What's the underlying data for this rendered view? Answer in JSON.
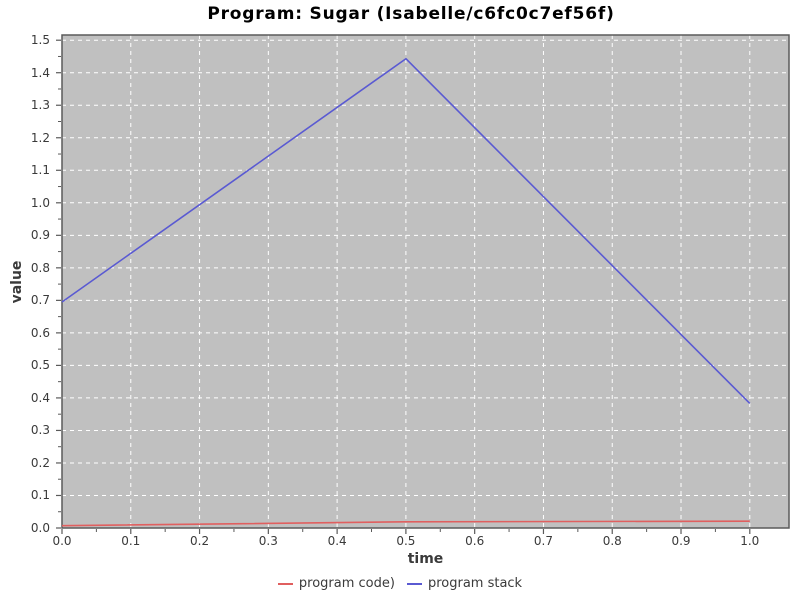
{
  "chart_data": {
    "type": "line",
    "title": "Program: Sugar (Isabelle/c6fc0c7ef56f)",
    "xlabel": "time",
    "ylabel": "value",
    "xlim": [
      0,
      1.057
    ],
    "ylim": [
      0,
      1.516
    ],
    "grid": true,
    "grid_style": "white dashed on gray background",
    "legend_position": "bottom-center",
    "x_ticks": [
      0.0,
      0.1,
      0.2,
      0.3,
      0.4,
      0.5,
      0.6,
      0.7,
      0.8,
      0.9,
      1.0
    ],
    "x_tick_labels": [
      "0.0",
      "0.1",
      "0.2",
      "0.3",
      "0.4",
      "0.5",
      "0.6",
      "0.7",
      "0.8",
      "0.9",
      "1.0"
    ],
    "y_ticks": [
      0.0,
      0.1,
      0.2,
      0.3,
      0.4,
      0.5,
      0.6,
      0.7,
      0.8,
      0.9,
      1.0,
      1.1,
      1.2,
      1.3,
      1.4,
      1.5
    ],
    "y_tick_labels": [
      "0.0",
      "0.1",
      "0.2",
      "0.3",
      "0.4",
      "0.5",
      "0.6",
      "0.7",
      "0.8",
      "0.9",
      "1.0",
      "1.1",
      "1.2",
      "1.3",
      "1.4",
      "1.5"
    ],
    "series": [
      {
        "name": "program code)",
        "color": "#e05f5f",
        "x": [
          0.0,
          0.5,
          1.0
        ],
        "y": [
          0.007,
          0.019,
          0.021
        ]
      },
      {
        "name": "program stack",
        "color": "#5a5ad2",
        "x": [
          0.0,
          0.5,
          1.0
        ],
        "y": [
          0.695,
          1.443,
          0.383
        ]
      }
    ],
    "colors": {
      "plot_background": "#c0c0c0",
      "grid": "#ffffff",
      "frame": "#5a5a5a",
      "tick": "#5a5a5a",
      "tick_label": "#3a3a3a",
      "title": "#000000"
    }
  }
}
